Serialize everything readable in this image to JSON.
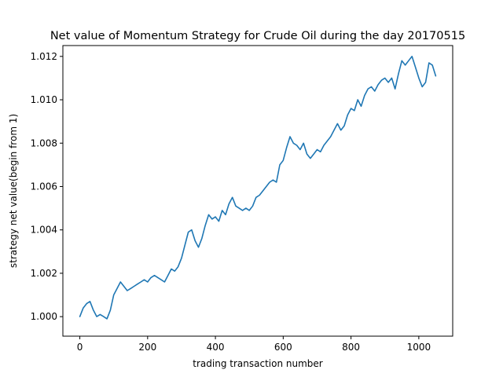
{
  "chart_data": {
    "type": "line",
    "title": "Net value of Momentum Strategy for Crude Oil during the day 20170515",
    "xlabel": "trading transaction number",
    "ylabel": "strategy net value(begin from 1)",
    "xlim": [
      -50,
      1100
    ],
    "ylim": [
      0.9991,
      1.0125
    ],
    "xticks": [
      0,
      200,
      400,
      600,
      800,
      1000
    ],
    "xtick_labels": [
      "0",
      "200",
      "400",
      "600",
      "800",
      "1000"
    ],
    "yticks": [
      1.0,
      1.002,
      1.004,
      1.006,
      1.008,
      1.01,
      1.012
    ],
    "ytick_labels": [
      "1.000",
      "1.002",
      "1.004",
      "1.006",
      "1.008",
      "1.010",
      "1.012"
    ],
    "grid": false,
    "legend": "none",
    "series": [
      {
        "color": "#1f77b4",
        "x": [
          0,
          10,
          20,
          30,
          40,
          50,
          60,
          70,
          80,
          90,
          100,
          110,
          120,
          130,
          140,
          150,
          160,
          170,
          180,
          190,
          200,
          210,
          220,
          230,
          240,
          250,
          260,
          270,
          280,
          290,
          300,
          310,
          320,
          330,
          340,
          350,
          360,
          370,
          380,
          390,
          400,
          410,
          420,
          430,
          440,
          450,
          460,
          470,
          480,
          490,
          500,
          510,
          520,
          530,
          540,
          550,
          560,
          570,
          580,
          590,
          600,
          610,
          620,
          630,
          640,
          650,
          660,
          670,
          680,
          690,
          700,
          710,
          720,
          730,
          740,
          750,
          760,
          770,
          780,
          790,
          800,
          810,
          820,
          830,
          840,
          850,
          860,
          870,
          880,
          890,
          900,
          910,
          920,
          930,
          940,
          950,
          960,
          970,
          980,
          990,
          1000,
          1010,
          1020,
          1030,
          1040,
          1050
        ],
        "y": [
          1.0,
          1.0004,
          1.0006,
          1.0007,
          1.0003,
          1.0,
          1.0001,
          1.0,
          0.9999,
          1.0003,
          1.001,
          1.0013,
          1.0016,
          1.0014,
          1.0012,
          1.0013,
          1.0014,
          1.0015,
          1.0016,
          1.0017,
          1.0016,
          1.0018,
          1.0019,
          1.0018,
          1.0017,
          1.0016,
          1.0019,
          1.0022,
          1.0021,
          1.0023,
          1.0027,
          1.0033,
          1.0039,
          1.004,
          1.0035,
          1.0032,
          1.0036,
          1.0042,
          1.0047,
          1.0045,
          1.0046,
          1.0044,
          1.0049,
          1.0047,
          1.0052,
          1.0055,
          1.0051,
          1.005,
          1.0049,
          1.005,
          1.0049,
          1.0051,
          1.0055,
          1.0056,
          1.0058,
          1.006,
          1.0062,
          1.0063,
          1.0062,
          1.007,
          1.0072,
          1.0078,
          1.0083,
          1.008,
          1.0079,
          1.0077,
          1.008,
          1.0075,
          1.0073,
          1.0075,
          1.0077,
          1.0076,
          1.0079,
          1.0081,
          1.0083,
          1.0086,
          1.0089,
          1.0086,
          1.0088,
          1.0093,
          1.0096,
          1.0095,
          1.01,
          1.0097,
          1.0102,
          1.0105,
          1.0106,
          1.0104,
          1.0107,
          1.0109,
          1.011,
          1.0108,
          1.011,
          1.0105,
          1.0112,
          1.0118,
          1.0116,
          1.0118,
          1.012,
          1.0115,
          1.011,
          1.0106,
          1.0108,
          1.0117,
          1.0116,
          1.0111
        ]
      }
    ]
  }
}
